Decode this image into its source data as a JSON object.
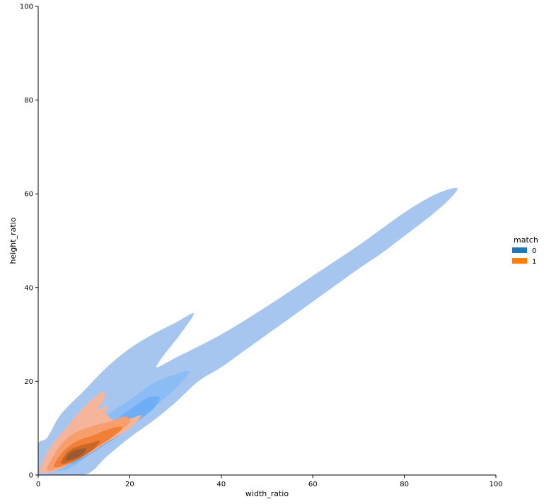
{
  "chart_data": {
    "type": "kde-contour",
    "xlabel": "width_ratio",
    "ylabel": "height_ratio",
    "xlim": [
      0,
      100
    ],
    "ylim": [
      0,
      100
    ],
    "xticks": [
      0,
      20,
      40,
      60,
      80,
      100
    ],
    "yticks": [
      0,
      20,
      40,
      60,
      80,
      100
    ],
    "grid": false,
    "legend": {
      "title": "match",
      "placement": "right",
      "entries": [
        {
          "label": "0",
          "color": "#1f77b4"
        },
        {
          "label": "1",
          "color": "#ff7f0e"
        }
      ]
    },
    "series": [
      {
        "name": "0",
        "levels": [
          {
            "fill": "#a6c6ef",
            "polygons": [
              [
                [
                  0,
                  0
                ],
                [
                  0,
                  6.5
                ],
                [
                  2,
                  8
                ],
                [
                  5,
                  13
                ],
                [
                  10,
                  18
                ],
                [
                  15,
                  23
                ],
                [
                  20,
                  27
                ],
                [
                  25,
                  30
                ],
                [
                  30,
                  32.5
                ],
                [
                  34,
                  34.5
                ],
                [
                  31,
                  30
                ],
                [
                  27,
                  25
                ],
                [
                  26,
                  23
                ],
                [
                  30,
                  25
                ],
                [
                  40,
                  30
                ],
                [
                  50,
                  36
                ],
                [
                  60,
                  42.5
                ],
                [
                  70,
                  49
                ],
                [
                  80,
                  56
                ],
                [
                  87,
                  60
                ],
                [
                  91.5,
                  61.2
                ],
                [
                  90,
                  59
                ],
                [
                  86,
                  55.5
                ],
                [
                  80,
                  51
                ],
                [
                  75,
                  47.3
                ],
                [
                  70,
                  44
                ],
                [
                  60,
                  37
                ],
                [
                  50,
                  30
                ],
                [
                  45,
                  26.5
                ],
                [
                  40,
                  23
                ],
                [
                  35,
                  20
                ],
                [
                  30,
                  15.5
                ],
                [
                  25,
                  11.5
                ],
                [
                  20,
                  8
                ],
                [
                  15,
                  4
                ],
                [
                  10,
                  0
                ]
              ]
            ]
          },
          {
            "fill": "#8bbcf5",
            "polygons": [
              [
                [
                  4,
                  1
                ],
                [
                  5,
                  3.5
                ],
                [
                  8,
                  7
                ],
                [
                  12,
                  10.5
                ],
                [
                  16,
                  13.5
                ],
                [
                  20,
                  16
                ],
                [
                  25,
                  19.5
                ],
                [
                  30,
                  21.5
                ],
                [
                  33,
                  22
                ],
                [
                  30,
                  18.5
                ],
                [
                  26,
                  15
                ],
                [
                  22,
                  12
                ],
                [
                  18,
                  9
                ],
                [
                  14,
                  6
                ],
                [
                  10,
                  3.5
                ],
                [
                  7,
                  1.5
                ]
              ]
            ]
          },
          {
            "fill": "#6eaef5",
            "polygons": [
              [
                [
                  7,
                  2.5
                ],
                [
                  9,
                  5
                ],
                [
                  12,
                  8
                ],
                [
                  16,
                  11
                ],
                [
                  20,
                  14
                ],
                [
                  24,
                  16.5
                ],
                [
                  26.5,
                  16.5
                ],
                [
                  25,
                  14
                ],
                [
                  21,
                  11
                ],
                [
                  17,
                  8
                ],
                [
                  13,
                  5.5
                ],
                [
                  9,
                  3
                ]
              ]
            ]
          }
        ]
      },
      {
        "name": "1",
        "levels": [
          {
            "fill": "#f6b59a",
            "polygons": [
              [
                [
                  0.5,
                  0.5
                ],
                [
                  1,
                  3
                ],
                [
                  3,
                  6.5
                ],
                [
                  6,
                  10
                ],
                [
                  9,
                  13.5
                ],
                [
                  11,
                  15
                ],
                [
                  14,
                  13.5
                ],
                [
                  17,
                  11.5
                ],
                [
                  20,
                  12
                ],
                [
                  22.5,
                  12.7
                ],
                [
                  20,
                  10
                ],
                [
                  15,
                  7
                ],
                [
                  11,
                  4.5
                ],
                [
                  7,
                  2.5
                ],
                [
                  4,
                  1
                ]
              ],
              [
                [
                  8.5,
                  12.5
                ],
                [
                  10,
                  14.5
                ],
                [
                  12.5,
                  16.8
                ],
                [
                  14.5,
                  17.8
                ],
                [
                  14,
                  15.5
                ],
                [
                  12,
                  13.5
                ],
                [
                  10,
                  12.3
                ]
              ],
              [
                [
                  9.5,
                  8
                ],
                [
                  11.5,
                  11
                ],
                [
                  13.5,
                  14
                ],
                [
                  15,
                  14.5
                ],
                [
                  14,
                  12
                ],
                [
                  12,
                  9
                ]
              ]
            ]
          },
          {
            "fill": "#f79e6c",
            "polygons": [
              [
                [
                  2,
                  1
                ],
                [
                  3,
                  3.5
                ],
                [
                  5,
                  6.5
                ],
                [
                  8,
                  9
                ],
                [
                  12,
                  10.5
                ],
                [
                  16,
                  11.5
                ],
                [
                  19,
                  12.5
                ],
                [
                  20,
                  11.2
                ],
                [
                  17,
                  9
                ],
                [
                  13,
                  6.5
                ],
                [
                  9,
                  4
                ],
                [
                  6,
                  2
                ]
              ]
            ]
          },
          {
            "fill": "#f07f38",
            "polygons": [
              [
                [
                  3.5,
                  1.8
                ],
                [
                  5,
                  4.5
                ],
                [
                  8,
                  7
                ],
                [
                  12,
                  8.5
                ],
                [
                  16,
                  10
                ],
                [
                  18.5,
                  10.2
                ],
                [
                  16.5,
                  8.3
                ],
                [
                  13,
                  6
                ],
                [
                  9,
                  3.5
                ],
                [
                  6,
                  2.2
                ]
              ]
            ]
          },
          {
            "fill": "#ca6724",
            "polygons": [
              [
                [
                  5,
                  2.5
                ],
                [
                  6.5,
                  5
                ],
                [
                  9,
                  6.2
                ],
                [
                  11.5,
                  6.8
                ],
                [
                  13.5,
                  7.3
                ],
                [
                  12,
                  5.5
                ],
                [
                  9.5,
                  3.8
                ],
                [
                  7,
                  2.8
                ]
              ]
            ]
          },
          {
            "fill": "#9c5a33",
            "polygons": [
              [
                [
                  6,
                  3.2
                ],
                [
                  7,
                  4.8
                ],
                [
                  9,
                  5.5
                ],
                [
                  10.5,
                  5.6
                ],
                [
                  9.5,
                  4.3
                ],
                [
                  7.5,
                  3.4
                ]
              ]
            ]
          }
        ]
      }
    ]
  }
}
